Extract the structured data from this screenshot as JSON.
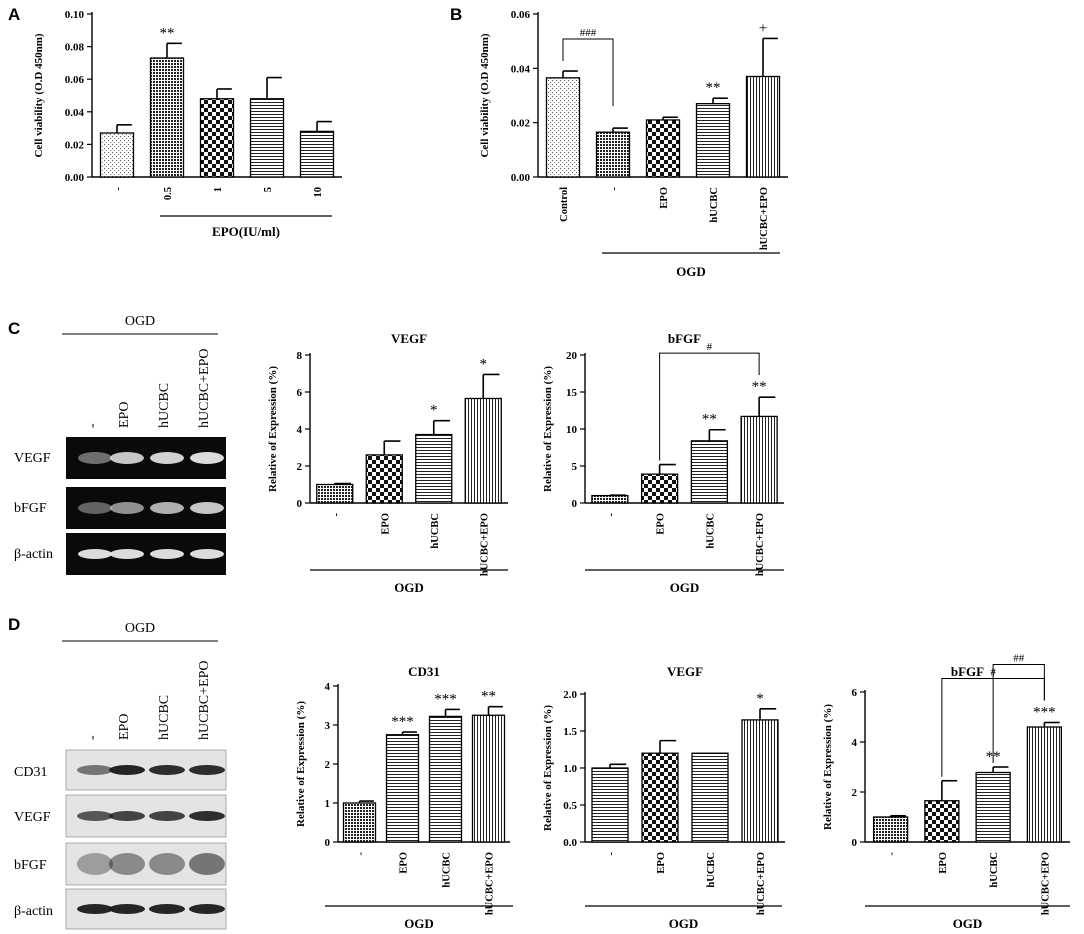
{
  "figure": {
    "panels": {
      "A": "A",
      "B": "B",
      "C": "C",
      "D": "D"
    },
    "ogd_label": "OGD",
    "blot_lanes": [
      "-",
      "EPO",
      "hUCBC",
      "hUCBC+EPO"
    ],
    "gel_C": {
      "header": "OGD",
      "rows": [
        "VEGF",
        "bFGF",
        "β-actin"
      ]
    },
    "blot_D": {
      "header": "OGD",
      "rows": [
        "CD31",
        "VEGF",
        "bFGF",
        "β-actin"
      ]
    }
  },
  "colors": {
    "bar_fill": "#ffffff",
    "stroke": "#000000",
    "gel_bg": "#0a0a0a",
    "gel_band": "#e8e8e8",
    "blot_bg": "#e4e4e4",
    "blot_band": "#1a1a1a"
  },
  "chart_data": [
    {
      "id": "A",
      "type": "bar",
      "categories": [
        "-",
        "0.5",
        "1",
        "5",
        "10"
      ],
      "values": [
        0.027,
        0.073,
        0.048,
        0.048,
        0.028
      ],
      "errors": [
        0.005,
        0.009,
        0.006,
        0.013,
        0.006
      ],
      "sig": [
        "",
        "**",
        "",
        "",
        ""
      ],
      "patterns": [
        "dots",
        "dense",
        "checker",
        "hlines",
        "hlines"
      ],
      "ylabel": "Cell viability (O.D 450nm)",
      "xlabel": "EPO(IU/ml)",
      "ylim": [
        0,
        0.1
      ],
      "yticks": [
        "0.00",
        "0.02",
        "0.04",
        "0.06",
        "0.08",
        "0.10"
      ],
      "ytick_values": [
        0,
        0.02,
        0.04,
        0.06,
        0.08,
        0.1
      ]
    },
    {
      "id": "B",
      "type": "bar",
      "categories": [
        "Control",
        "-",
        "EPO",
        "hUCBC",
        "hUCBC+EPO"
      ],
      "values": [
        0.0365,
        0.0165,
        0.021,
        0.027,
        0.037
      ],
      "errors": [
        0.0025,
        0.0015,
        0.001,
        0.002,
        0.014
      ],
      "sig": [
        "",
        "",
        "",
        "**",
        "+"
      ],
      "patterns": [
        "dots",
        "dense",
        "checker",
        "hlines",
        "vlines"
      ],
      "ylabel": "Cell viability (O.D 450nm)",
      "xlabel": "OGD",
      "ylim": [
        0,
        0.06
      ],
      "yticks": [
        "0.00",
        "0.02",
        "0.04",
        "0.06"
      ],
      "ytick_values": [
        0,
        0.02,
        0.04,
        0.06
      ],
      "brackets": [
        {
          "from": 0,
          "to": 1,
          "label": "###"
        }
      ]
    },
    {
      "id": "C-VEGF",
      "type": "bar",
      "title": "VEGF",
      "categories": [
        "-",
        "EPO",
        "hUCBC",
        "hUCBC+EPO"
      ],
      "values": [
        1.0,
        2.6,
        3.7,
        5.65
      ],
      "errors": [
        0.05,
        0.75,
        0.75,
        1.3
      ],
      "sig": [
        "",
        "",
        "*",
        "*"
      ],
      "patterns": [
        "dense",
        "checker",
        "hlines",
        "vlines"
      ],
      "ylabel": "Relative of Expression (%)",
      "xlabel": "OGD",
      "ylim": [
        0,
        8
      ],
      "yticks": [
        "0",
        "2",
        "4",
        "6",
        "8"
      ],
      "ytick_values": [
        0,
        2,
        4,
        6,
        8
      ]
    },
    {
      "id": "C-bFGF",
      "type": "bar",
      "title": "bFGF",
      "categories": [
        "-",
        "EPO",
        "hUCBC",
        "hUCBC+EPO"
      ],
      "values": [
        1.0,
        3.9,
        8.4,
        11.7
      ],
      "errors": [
        0.05,
        1.3,
        1.5,
        2.6
      ],
      "sig": [
        "",
        "",
        "**",
        "**"
      ],
      "patterns": [
        "dense",
        "checker",
        "hlines",
        "vlines"
      ],
      "ylabel": "Relative of Expression (%)",
      "xlabel": "OGD",
      "ylim": [
        0,
        20
      ],
      "yticks": [
        "0",
        "5",
        "10",
        "15",
        "20"
      ],
      "ytick_values": [
        0,
        5,
        10,
        15,
        20
      ],
      "brackets": [
        {
          "from": 1,
          "to": 3,
          "label": "#"
        }
      ]
    },
    {
      "id": "D-CD31",
      "type": "bar",
      "title": "CD31",
      "categories": [
        "-",
        "EPO",
        "hUCBC",
        "hUCBC+EPO"
      ],
      "values": [
        1.0,
        2.75,
        3.22,
        3.25
      ],
      "errors": [
        0.05,
        0.07,
        0.18,
        0.22
      ],
      "sig": [
        "",
        "***",
        "***",
        "**"
      ],
      "patterns": [
        "dense",
        "hlines",
        "hlines",
        "vlines"
      ],
      "ylabel": "Relative of Expression (%)",
      "xlabel": "OGD",
      "ylim": [
        0,
        4
      ],
      "yticks": [
        "0",
        "1",
        "2",
        "3",
        "4"
      ],
      "ytick_values": [
        0,
        1,
        2,
        3,
        4
      ]
    },
    {
      "id": "D-VEGF",
      "type": "bar",
      "title": "VEGF",
      "categories": [
        "-",
        "EPO",
        "hUCBC",
        "hUCBC+EPO"
      ],
      "values": [
        1.0,
        1.2,
        1.2,
        1.65
      ],
      "errors": [
        0.05,
        0.17,
        0.0,
        0.15
      ],
      "sig": [
        "",
        "",
        "",
        "*"
      ],
      "patterns": [
        "hlines",
        "checker",
        "hlines",
        "vlines"
      ],
      "ylabel": "Relative of Expression (%)",
      "xlabel": "OGD",
      "ylim": [
        0,
        2.0
      ],
      "yticks": [
        "0.0",
        "0.5",
        "1.0",
        "1.5",
        "2.0"
      ],
      "ytick_values": [
        0,
        0.5,
        1.0,
        1.5,
        2.0
      ]
    },
    {
      "id": "D-bFGF",
      "type": "bar",
      "title": "bFGF",
      "categories": [
        "-",
        "EPO",
        "hUCBC",
        "hUCBC+EPO"
      ],
      "values": [
        1.0,
        1.65,
        2.78,
        4.6
      ],
      "errors": [
        0.05,
        0.8,
        0.22,
        0.18
      ],
      "sig": [
        "",
        "",
        "**",
        "***"
      ],
      "patterns": [
        "dense",
        "checker",
        "hlines",
        "vlines"
      ],
      "ylabel": "Relative of Expression (%)",
      "xlabel": "OGD",
      "ylim": [
        0,
        6
      ],
      "yticks": [
        "0",
        "2",
        "4",
        "6"
      ],
      "ytick_values": [
        0,
        2,
        4,
        6
      ],
      "brackets": [
        {
          "from": 1,
          "to": 3,
          "label": "#"
        },
        {
          "from": 2,
          "to": 3,
          "label": "##"
        }
      ]
    }
  ]
}
